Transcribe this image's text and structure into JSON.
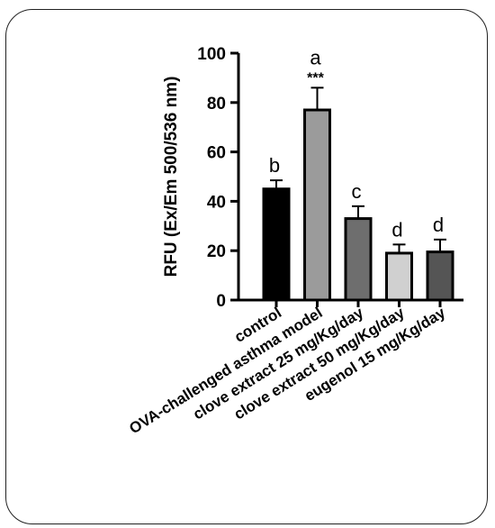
{
  "chart_data": {
    "type": "bar",
    "title": "",
    "xlabel": "",
    "ylabel": "RFU (Ex/Em 500/536 nm)",
    "ylim": [
      0,
      100
    ],
    "yticks": [
      "0",
      "20",
      "40",
      "60",
      "80",
      "100"
    ],
    "grid": false,
    "categories": [
      "control",
      "OVA-challenged asthma model",
      "clove extract 25 mg/Kg/day",
      "clove extract 50 mg/Kg/day",
      "eugenol 15 mg/Kg/day"
    ],
    "values": [
      45,
      77,
      33,
      19,
      19.5
    ],
    "errors": [
      3.5,
      9,
      5,
      3.5,
      5
    ],
    "significance_letters": [
      "b",
      "a",
      "c",
      "d",
      "d"
    ],
    "significance_stars": [
      "",
      "***",
      "",
      "",
      ""
    ],
    "bar_colors": [
      "#000000",
      "#9b9b9b",
      "#6e6e6e",
      "#d0d0d0",
      "#555555"
    ]
  }
}
